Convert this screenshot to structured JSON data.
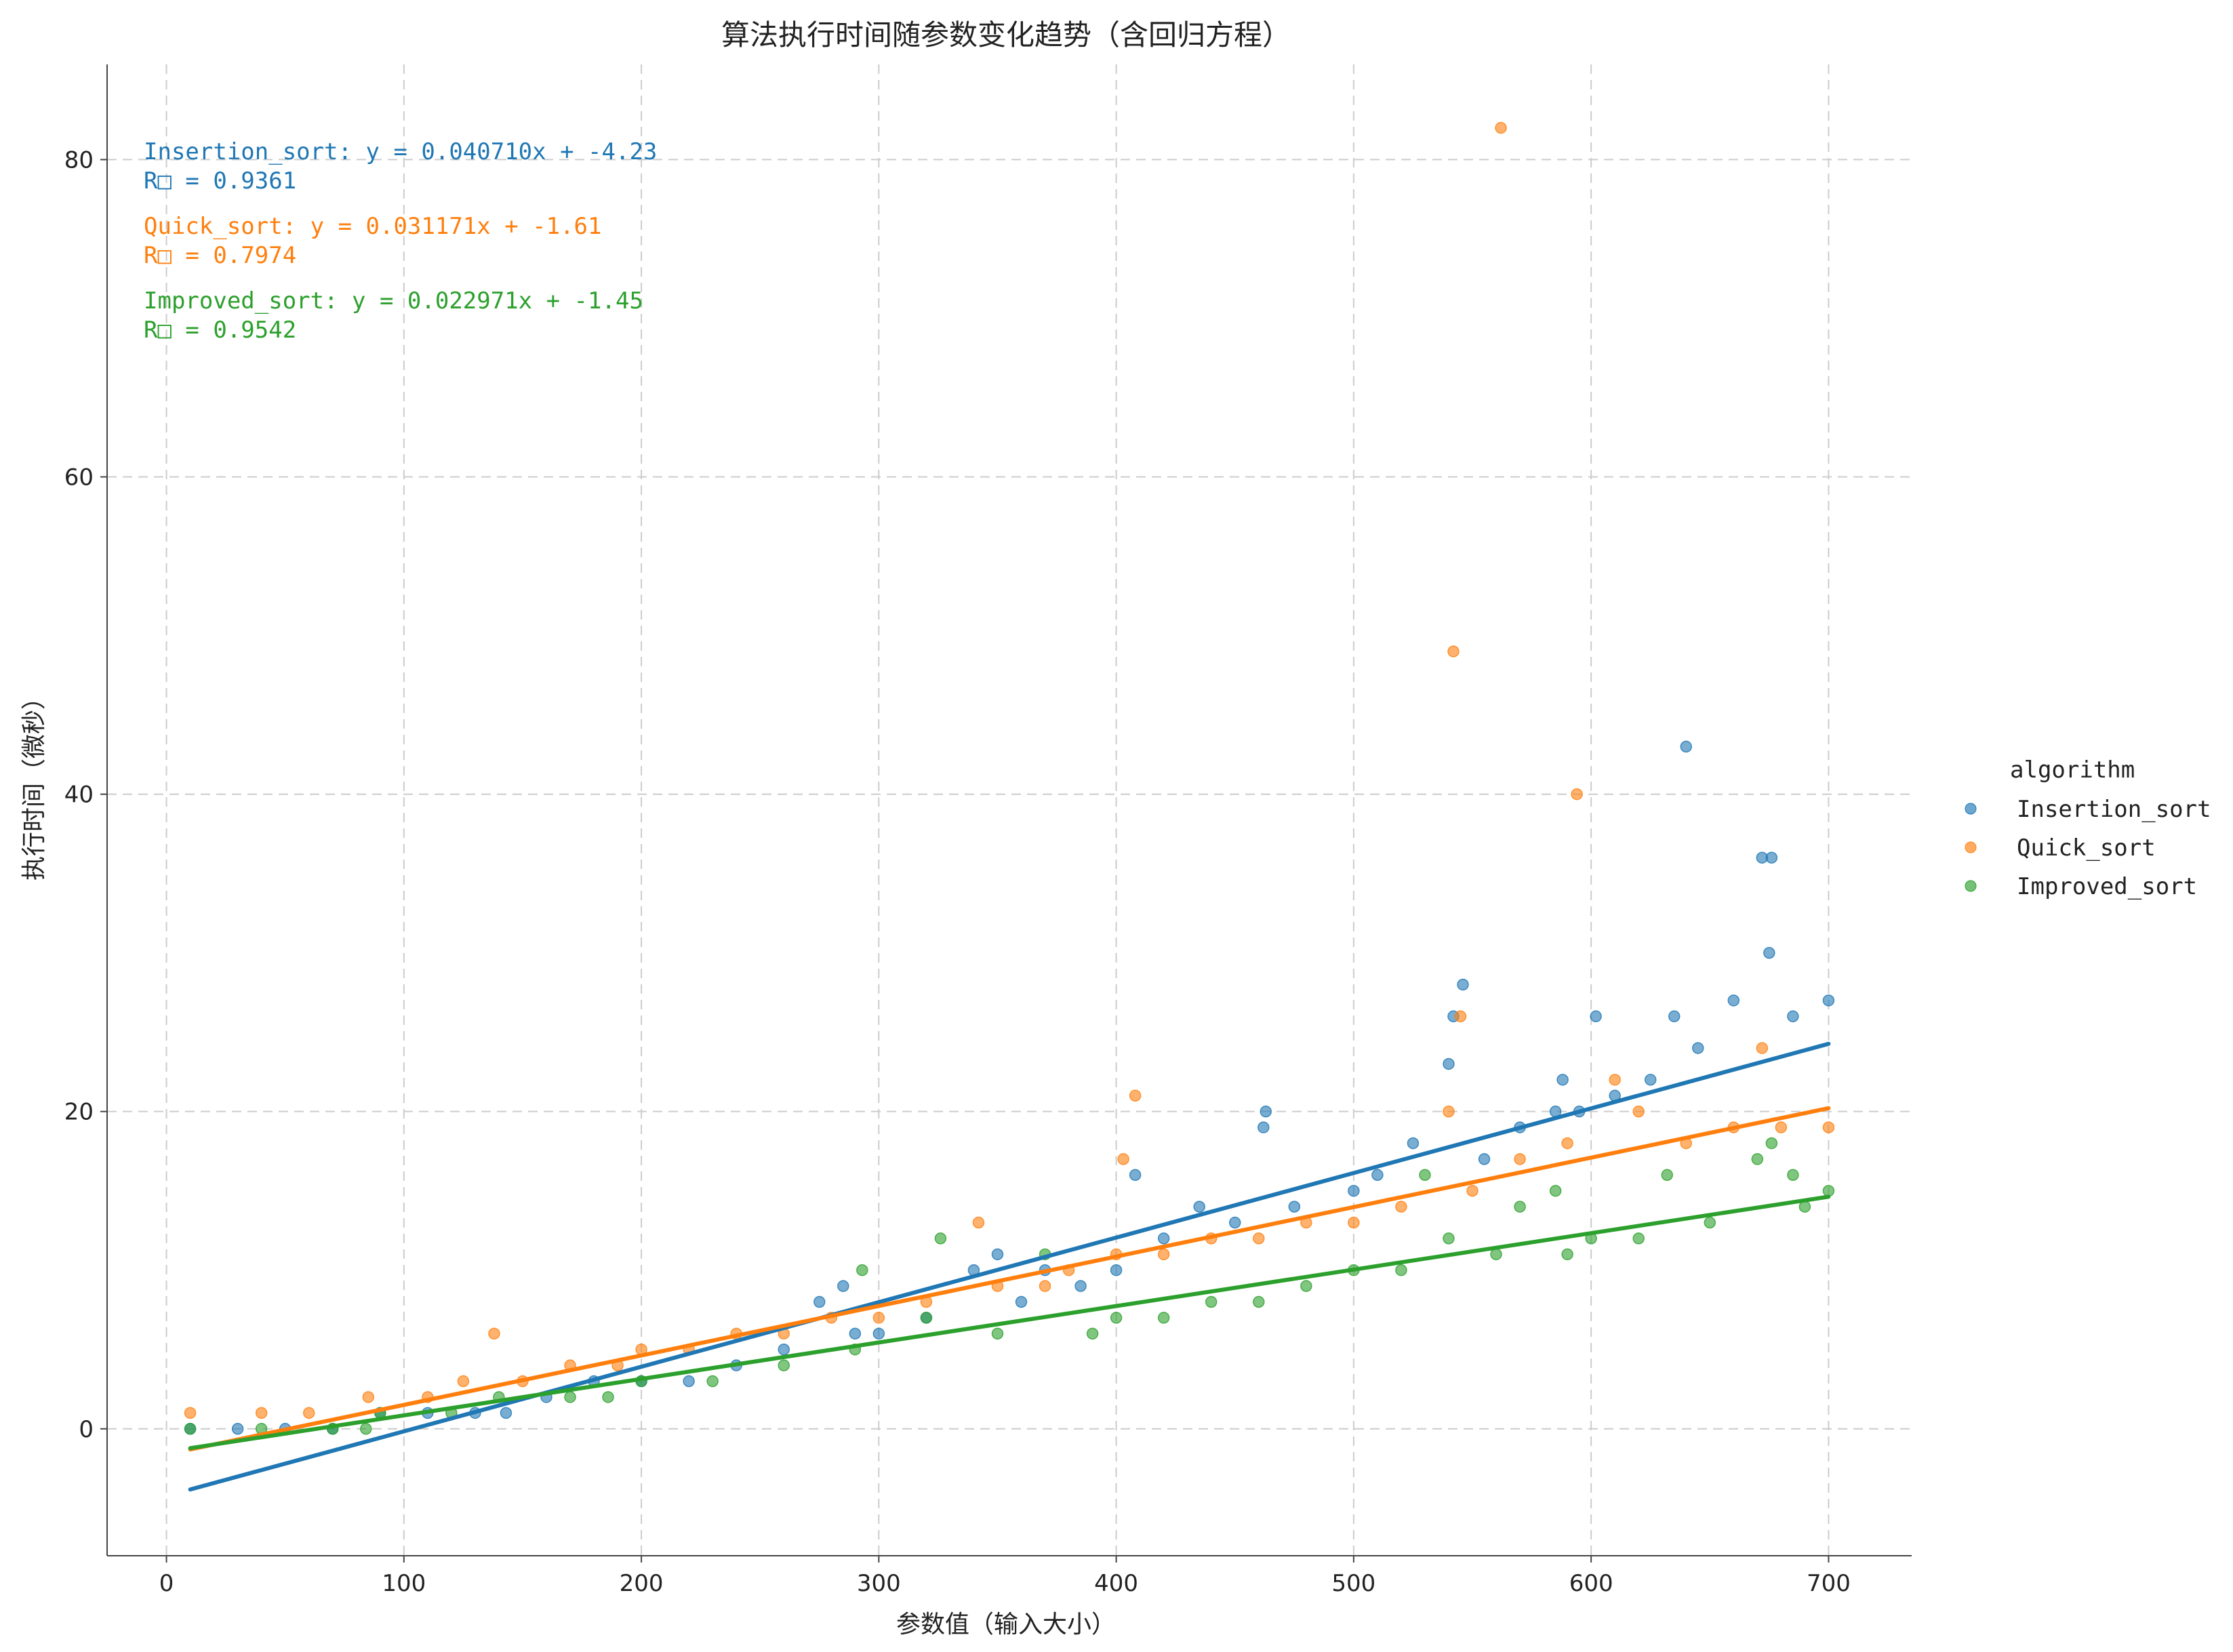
{
  "chart_data": {
    "type": "scatter",
    "title": "算法执行时间随参数变化趋势（含回归方程）",
    "xlabel": "参数值（输入大小）",
    "ylabel": "执行时间（微秒）",
    "xlim": [
      -25,
      735
    ],
    "ylim": [
      -8,
      86
    ],
    "xticks": [
      0,
      100,
      200,
      300,
      400,
      500,
      600,
      700
    ],
    "yticks": [
      0,
      20,
      40,
      60,
      80
    ],
    "grid": true,
    "legend": {
      "title": "algorithm",
      "placement": "outside-right",
      "entries": [
        "Insertion_sort",
        "Quick_sort",
        "Improved_sort"
      ]
    },
    "annotations": [
      {
        "series": "Insertion_sort",
        "line1": "Insertion_sort: y = 0.040710x + -4.23",
        "line2": "R□ = 0.9361"
      },
      {
        "series": "Quick_sort",
        "line1": "Quick_sort: y = 0.031171x + -1.61",
        "line2": "R□ = 0.7974"
      },
      {
        "series": "Improved_sort",
        "line1": "Improved_sort: y = 0.022971x + -1.45",
        "line2": "R□ = 0.9542"
      }
    ],
    "series": [
      {
        "name": "Insertion_sort",
        "color": "#1f77b4",
        "regression": {
          "slope": 0.04071,
          "intercept": -4.23,
          "x_range": [
            10,
            700
          ]
        },
        "points": [
          [
            10,
            0
          ],
          [
            30,
            0
          ],
          [
            50,
            0
          ],
          [
            70,
            0
          ],
          [
            90,
            1
          ],
          [
            110,
            1
          ],
          [
            130,
            1
          ],
          [
            143,
            1
          ],
          [
            160,
            2
          ],
          [
            180,
            3
          ],
          [
            200,
            3
          ],
          [
            220,
            3
          ],
          [
            240,
            4
          ],
          [
            260,
            5
          ],
          [
            275,
            8
          ],
          [
            285,
            9
          ],
          [
            290,
            6
          ],
          [
            300,
            6
          ],
          [
            320,
            7
          ],
          [
            340,
            10
          ],
          [
            350,
            11
          ],
          [
            360,
            8
          ],
          [
            370,
            10
          ],
          [
            385,
            9
          ],
          [
            400,
            10
          ],
          [
            408,
            16
          ],
          [
            420,
            12
          ],
          [
            435,
            14
          ],
          [
            450,
            13
          ],
          [
            462,
            19
          ],
          [
            463,
            20
          ],
          [
            475,
            14
          ],
          [
            500,
            15
          ],
          [
            510,
            16
          ],
          [
            525,
            18
          ],
          [
            540,
            23
          ],
          [
            542,
            26
          ],
          [
            546,
            28
          ],
          [
            555,
            17
          ],
          [
            570,
            19
          ],
          [
            585,
            20
          ],
          [
            588,
            22
          ],
          [
            595,
            20
          ],
          [
            602,
            26
          ],
          [
            610,
            21
          ],
          [
            625,
            22
          ],
          [
            635,
            26
          ],
          [
            640,
            43
          ],
          [
            645,
            24
          ],
          [
            660,
            27
          ],
          [
            672,
            36
          ],
          [
            675,
            30
          ],
          [
            676,
            36
          ],
          [
            685,
            26
          ],
          [
            700,
            27
          ]
        ]
      },
      {
        "name": "Quick_sort",
        "color": "#ff7f0e",
        "regression": {
          "slope": 0.031171,
          "intercept": -1.61,
          "x_range": [
            10,
            700
          ]
        },
        "points": [
          [
            10,
            1
          ],
          [
            40,
            1
          ],
          [
            60,
            1
          ],
          [
            85,
            2
          ],
          [
            110,
            2
          ],
          [
            125,
            3
          ],
          [
            138,
            6
          ],
          [
            150,
            3
          ],
          [
            170,
            4
          ],
          [
            190,
            4
          ],
          [
            200,
            5
          ],
          [
            220,
            5
          ],
          [
            240,
            6
          ],
          [
            260,
            6
          ],
          [
            280,
            7
          ],
          [
            300,
            7
          ],
          [
            320,
            8
          ],
          [
            342,
            13
          ],
          [
            350,
            9
          ],
          [
            370,
            9
          ],
          [
            380,
            10
          ],
          [
            400,
            11
          ],
          [
            403,
            17
          ],
          [
            408,
            21
          ],
          [
            420,
            11
          ],
          [
            440,
            12
          ],
          [
            460,
            12
          ],
          [
            480,
            13
          ],
          [
            500,
            13
          ],
          [
            520,
            14
          ],
          [
            540,
            20
          ],
          [
            542,
            49
          ],
          [
            545,
            26
          ],
          [
            550,
            15
          ],
          [
            562,
            82
          ],
          [
            570,
            17
          ],
          [
            590,
            18
          ],
          [
            594,
            40
          ],
          [
            610,
            22
          ],
          [
            620,
            20
          ],
          [
            640,
            18
          ],
          [
            660,
            19
          ],
          [
            672,
            24
          ],
          [
            680,
            19
          ],
          [
            700,
            19
          ]
        ]
      },
      {
        "name": "Improved_sort",
        "color": "#2ca02c",
        "regression": {
          "slope": 0.022971,
          "intercept": -1.45,
          "x_range": [
            10,
            700
          ]
        },
        "points": [
          [
            10,
            0
          ],
          [
            40,
            0
          ],
          [
            70,
            0
          ],
          [
            84,
            0
          ],
          [
            90,
            1
          ],
          [
            120,
            1
          ],
          [
            140,
            2
          ],
          [
            170,
            2
          ],
          [
            186,
            2
          ],
          [
            200,
            3
          ],
          [
            230,
            3
          ],
          [
            260,
            4
          ],
          [
            290,
            5
          ],
          [
            293,
            10
          ],
          [
            320,
            7
          ],
          [
            326,
            12
          ],
          [
            350,
            6
          ],
          [
            370,
            11
          ],
          [
            390,
            6
          ],
          [
            400,
            7
          ],
          [
            420,
            7
          ],
          [
            440,
            8
          ],
          [
            460,
            8
          ],
          [
            480,
            9
          ],
          [
            500,
            10
          ],
          [
            520,
            10
          ],
          [
            530,
            16
          ],
          [
            540,
            12
          ],
          [
            560,
            11
          ],
          [
            570,
            14
          ],
          [
            585,
            15
          ],
          [
            590,
            11
          ],
          [
            600,
            12
          ],
          [
            620,
            12
          ],
          [
            632,
            16
          ],
          [
            650,
            13
          ],
          [
            670,
            17
          ],
          [
            676,
            18
          ],
          [
            685,
            16
          ],
          [
            690,
            14
          ],
          [
            700,
            15
          ]
        ]
      }
    ]
  }
}
